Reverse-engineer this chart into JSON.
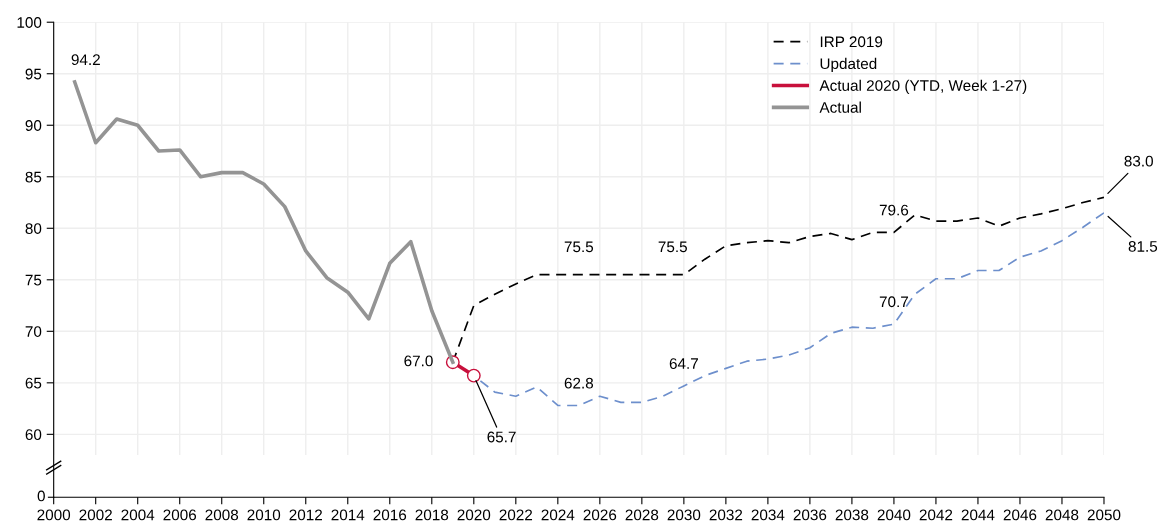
{
  "chart_data": {
    "type": "line",
    "x": [
      2001,
      2002,
      2003,
      2004,
      2005,
      2006,
      2007,
      2008,
      2009,
      2010,
      2011,
      2012,
      2013,
      2014,
      2015,
      2016,
      2017,
      2018,
      2019,
      2020,
      2021,
      2022,
      2023,
      2024,
      2025,
      2026,
      2027,
      2028,
      2029,
      2030,
      2031,
      2032,
      2033,
      2034,
      2035,
      2036,
      2037,
      2038,
      2039,
      2040,
      2041,
      2042,
      2043,
      2044,
      2045,
      2046,
      2047,
      2048,
      2049,
      2050
    ],
    "series": [
      {
        "name": "IRP 2019",
        "color": "#000000",
        "line_style": "dashed",
        "values": [
          null,
          null,
          null,
          null,
          null,
          null,
          null,
          null,
          null,
          null,
          null,
          null,
          null,
          null,
          null,
          null,
          null,
          null,
          67.0,
          72.5,
          73.6,
          74.6,
          75.5,
          75.5,
          75.5,
          75.5,
          75.5,
          75.5,
          75.5,
          75.5,
          77.0,
          78.3,
          78.6,
          78.8,
          78.6,
          79.2,
          79.5,
          78.9,
          79.6,
          79.6,
          81.3,
          80.7,
          80.7,
          81.0,
          80.2,
          81.0,
          81.4,
          81.9,
          82.5,
          83.0
        ]
      },
      {
        "name": "Updated",
        "color": "#6d8fcc",
        "line_style": "dashed",
        "values": [
          null,
          null,
          null,
          null,
          null,
          null,
          null,
          null,
          null,
          null,
          null,
          null,
          null,
          null,
          null,
          null,
          null,
          null,
          67.0,
          65.7,
          64.1,
          63.7,
          64.6,
          62.8,
          62.8,
          63.7,
          63.1,
          63.1,
          63.7,
          64.7,
          65.7,
          66.4,
          67.1,
          67.3,
          67.7,
          68.4,
          69.8,
          70.4,
          70.3,
          70.7,
          73.6,
          75.1,
          75.1,
          75.9,
          75.9,
          77.2,
          77.8,
          78.8,
          80.1,
          81.5
        ]
      },
      {
        "name": "Actual 2020 (YTD, Week 1-27)",
        "color": "#c8103c",
        "line_style": "solid",
        "marker": "circle",
        "values": [
          null,
          null,
          null,
          null,
          null,
          null,
          null,
          null,
          null,
          null,
          null,
          null,
          null,
          null,
          null,
          null,
          null,
          null,
          67.0,
          65.7,
          null,
          null,
          null,
          null,
          null,
          null,
          null,
          null,
          null,
          null,
          null,
          null,
          null,
          null,
          null,
          null,
          null,
          null,
          null,
          null,
          null,
          null,
          null,
          null,
          null,
          null,
          null,
          null,
          null,
          null
        ]
      },
      {
        "name": "Actual",
        "color": "#949494",
        "line_style": "solid",
        "values": [
          94.2,
          88.3,
          90.6,
          90.0,
          87.5,
          87.6,
          85.0,
          85.4,
          85.4,
          84.3,
          82.1,
          77.8,
          75.2,
          73.8,
          71.2,
          76.6,
          78.7,
          72.0,
          67.0,
          null,
          null,
          null,
          null,
          null,
          null,
          null,
          null,
          null,
          null,
          null,
          null,
          null,
          null,
          null,
          null,
          null,
          null,
          null,
          null,
          null,
          null,
          null,
          null,
          null,
          null,
          null,
          null,
          null,
          null,
          null
        ]
      }
    ],
    "xlim": [
      2000,
      2050
    ],
    "xticks": [
      2000,
      2002,
      2004,
      2006,
      2008,
      2010,
      2012,
      2014,
      2016,
      2018,
      2020,
      2022,
      2024,
      2026,
      2028,
      2030,
      2032,
      2034,
      2036,
      2038,
      2040,
      2042,
      2044,
      2046,
      2048,
      2050
    ],
    "ylim": [
      58,
      100
    ],
    "yticks": [
      60,
      65,
      70,
      75,
      80,
      85,
      90,
      95,
      100
    ],
    "grid": true,
    "legend": "top right",
    "annotations": [
      {
        "text": "94.2",
        "x": 2001,
        "y": 94.2
      },
      {
        "text": "67.0",
        "x": 2019,
        "y": 67.0
      },
      {
        "text": "65.7",
        "x": 2020,
        "y": 65.7
      },
      {
        "text": "75.5",
        "x": 2025,
        "y": 75.5
      },
      {
        "text": "75.5",
        "x": 2030,
        "y": 75.5
      },
      {
        "text": "62.8",
        "x": 2025,
        "y": 62.8
      },
      {
        "text": "64.7",
        "x": 2030,
        "y": 64.7
      },
      {
        "text": "79.6",
        "x": 2040,
        "y": 79.6
      },
      {
        "text": "70.7",
        "x": 2040,
        "y": 70.7
      },
      {
        "text": "83.0",
        "x": 2050,
        "y": 83.0
      },
      {
        "text": "81.5",
        "x": 2050,
        "y": 81.5
      },
      "0"
    ]
  }
}
